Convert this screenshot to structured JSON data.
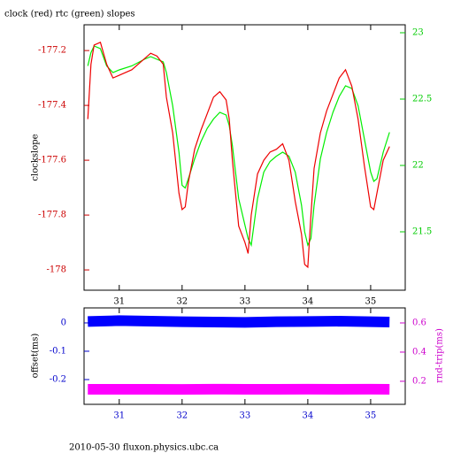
{
  "chart_data": [
    {
      "type": "line",
      "title": "clock (red) rtc (green) slopes",
      "ylabel": "clockslope",
      "x": [
        30.5,
        30.55,
        30.6,
        30.7,
        30.8,
        30.9,
        31.0,
        31.2,
        31.4,
        31.5,
        31.6,
        31.7,
        31.75,
        31.85,
        31.95,
        32.0,
        32.05,
        32.1,
        32.2,
        32.3,
        32.4,
        32.5,
        32.6,
        32.7,
        32.75,
        32.8,
        32.9,
        33.0,
        33.05,
        33.1,
        33.2,
        33.3,
        33.4,
        33.5,
        33.6,
        33.7,
        33.8,
        33.9,
        33.95,
        34.0,
        34.05,
        34.1,
        34.2,
        34.3,
        34.4,
        34.5,
        34.6,
        34.7,
        34.8,
        34.9,
        35.0,
        35.05,
        35.1,
        35.2,
        35.3
      ],
      "series": [
        {
          "color": "#00ee00",
          "axis": "y2",
          "values": [
            22.75,
            22.85,
            22.9,
            22.88,
            22.75,
            22.7,
            22.72,
            22.75,
            22.8,
            22.82,
            22.8,
            22.78,
            22.7,
            22.45,
            22.1,
            21.85,
            21.83,
            21.9,
            22.05,
            22.18,
            22.28,
            22.35,
            22.4,
            22.38,
            22.3,
            22.15,
            21.75,
            21.55,
            21.45,
            21.4,
            21.75,
            21.95,
            22.03,
            22.07,
            22.1,
            22.07,
            21.95,
            21.7,
            21.5,
            21.4,
            21.45,
            21.7,
            22.05,
            22.25,
            22.4,
            22.52,
            22.6,
            22.58,
            22.45,
            22.2,
            21.95,
            21.88,
            21.9,
            22.1,
            22.25
          ]
        },
        {
          "color": "#ee0000",
          "values": [
            -177.45,
            -177.25,
            -177.18,
            -177.17,
            -177.25,
            -177.3,
            -177.29,
            -177.27,
            -177.23,
            -177.21,
            -177.22,
            -177.25,
            -177.37,
            -177.5,
            -177.72,
            -177.78,
            -177.77,
            -177.68,
            -177.56,
            -177.49,
            -177.43,
            -177.37,
            -177.35,
            -177.38,
            -177.45,
            -177.6,
            -177.84,
            -177.9,
            -177.94,
            -177.8,
            -177.65,
            -177.6,
            -177.57,
            -177.56,
            -177.54,
            -177.6,
            -177.75,
            -177.87,
            -177.98,
            -177.99,
            -177.8,
            -177.63,
            -177.5,
            -177.42,
            -177.36,
            -177.3,
            -177.27,
            -177.33,
            -177.45,
            -177.62,
            -177.77,
            -177.78,
            -177.72,
            -177.6,
            -177.55
          ]
        }
      ],
      "xlim": [
        30.44,
        35.55
      ],
      "xticks": [
        31,
        32,
        33,
        34,
        35
      ],
      "ylim": [
        -178.074,
        -177.106
      ],
      "yticks": [
        -177.2,
        -177.4,
        -177.6,
        -177.8,
        -178
      ],
      "y2lim": [
        21.06,
        23.06
      ],
      "y2ticks": [
        23,
        22.5,
        22,
        21.5
      ],
      "axis_colors": {
        "x": "#000000",
        "y": "#cc0000",
        "y2": "#00cc00"
      }
    },
    {
      "type": "line",
      "ylabel": "offset(ms)",
      "y2label": "rnd-trip(ms)",
      "x": [
        30.5,
        31,
        31.5,
        32,
        32.5,
        33,
        33.5,
        34,
        34.5,
        35,
        35.3
      ],
      "series": [
        {
          "color": "#0000ff",
          "values": [
            0.005,
            0.008,
            0.006,
            0.004,
            0.003,
            0.002,
            0.004,
            0.005,
            0.006,
            0.004,
            0.003
          ]
        },
        {
          "color": "#ff00ff",
          "axis": "y2",
          "values": [
            0.145,
            0.145,
            0.145,
            0.144,
            0.146,
            0.145,
            0.145,
            0.146,
            0.145,
            0.146,
            0.145
          ]
        }
      ],
      "xlim": [
        30.44,
        35.55
      ],
      "xticks": [
        31,
        32,
        33,
        34,
        35
      ],
      "ylim": [
        -0.2875,
        0.053
      ],
      "yticks": [
        0,
        -0.1,
        -0.2
      ],
      "y2lim": [
        0.042,
        0.703
      ],
      "y2ticks": [
        0.6,
        0.4,
        0.2
      ],
      "axis_colors": {
        "x": "#0000cc",
        "y": "#0000cc",
        "y2": "#cc00cc"
      }
    }
  ],
  "footer": "2010-05-30 fluxon.physics.ubc.ca"
}
